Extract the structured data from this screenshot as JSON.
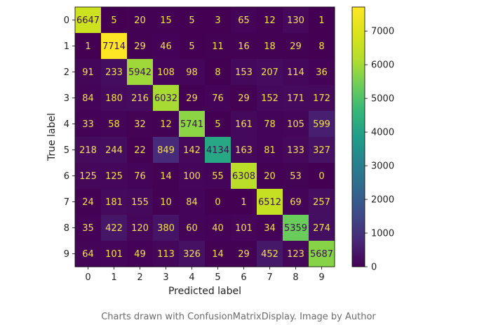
{
  "chart_data": {
    "type": "heatmap",
    "xlabel": "Predicted label",
    "ylabel": "True label",
    "x_categories": [
      "0",
      "1",
      "2",
      "3",
      "4",
      "5",
      "6",
      "7",
      "8",
      "9"
    ],
    "y_categories": [
      "0",
      "1",
      "2",
      "3",
      "4",
      "5",
      "6",
      "7",
      "8",
      "9"
    ],
    "matrix": [
      [
        6647,
        5,
        20,
        15,
        5,
        3,
        65,
        12,
        130,
        1
      ],
      [
        1,
        7714,
        29,
        46,
        5,
        11,
        16,
        18,
        29,
        8
      ],
      [
        91,
        233,
        5942,
        108,
        98,
        8,
        153,
        207,
        114,
        36
      ],
      [
        84,
        180,
        216,
        6032,
        29,
        76,
        29,
        152,
        171,
        172
      ],
      [
        33,
        58,
        32,
        12,
        5741,
        5,
        161,
        78,
        105,
        599
      ],
      [
        218,
        244,
        22,
        849,
        142,
        4134,
        163,
        81,
        133,
        327
      ],
      [
        125,
        125,
        76,
        14,
        100,
        55,
        6308,
        20,
        53,
        0
      ],
      [
        24,
        181,
        155,
        10,
        84,
        0,
        1,
        6512,
        69,
        257
      ],
      [
        35,
        422,
        120,
        380,
        60,
        40,
        101,
        34,
        5359,
        274
      ],
      [
        64,
        101,
        49,
        113,
        326,
        14,
        29,
        452,
        123,
        5687
      ]
    ],
    "colormap": "viridis",
    "colorbar": {
      "min": 0,
      "max": 7714,
      "ticks": [
        0,
        1000,
        2000,
        3000,
        4000,
        5000,
        6000,
        7000
      ]
    }
  },
  "caption": "Charts drawn with ConfusionMatrixDisplay. Image by Author"
}
